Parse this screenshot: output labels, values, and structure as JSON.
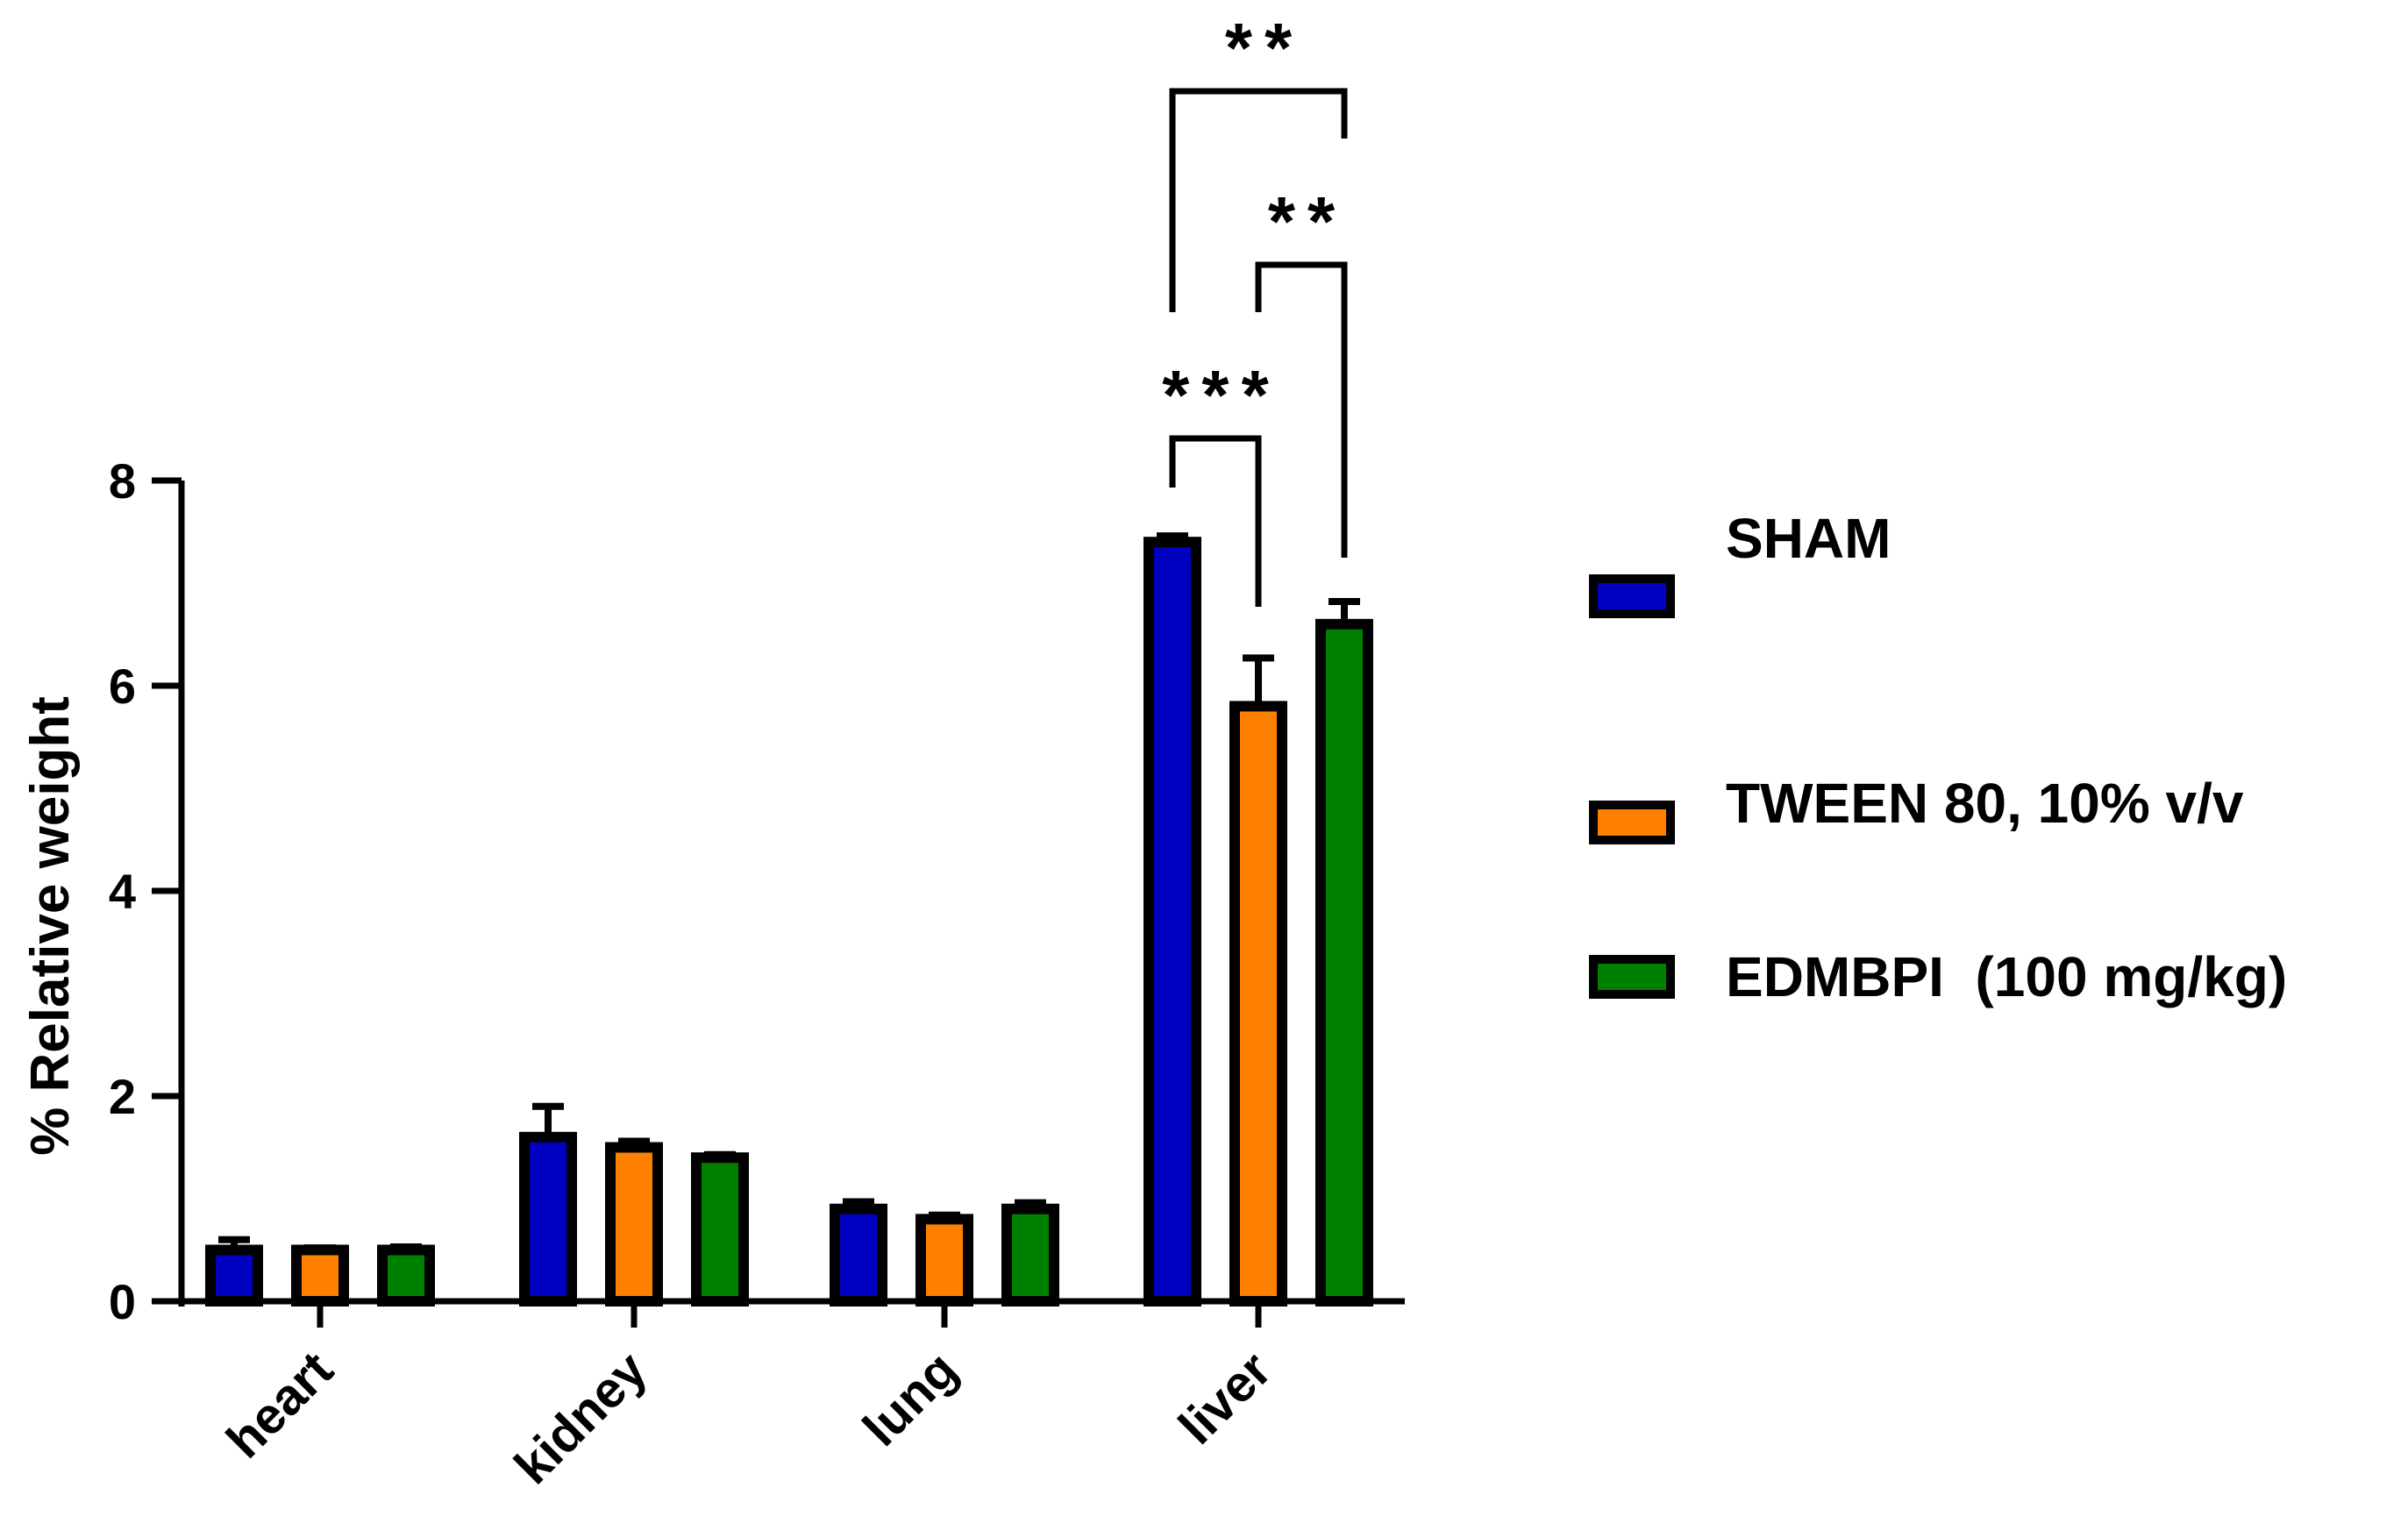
{
  "chart_data": {
    "type": "bar",
    "categories": [
      "heart",
      "kidney",
      "lung",
      "liver"
    ],
    "ylabel": "% Relative weight",
    "ylim": [
      0,
      8
    ],
    "yticks": [
      0,
      2,
      4,
      6,
      8
    ],
    "grid": false,
    "legend_position": "right",
    "series": [
      {
        "name": "SHAM",
        "color": "#0000c0",
        "values": [
          0.5,
          1.6,
          0.9,
          7.4
        ],
        "errors": [
          0.1,
          0.3,
          0.07,
          0.06
        ]
      },
      {
        "name": "TWEEN 80, 10% v/v",
        "color": "#ff8000",
        "values": [
          0.5,
          1.5,
          0.8,
          5.8
        ],
        "errors": [
          0.02,
          0.06,
          0.04,
          0.47
        ]
      },
      {
        "name": "EDMBPI  (100 mg/kg)",
        "color": "#008000",
        "values": [
          0.5,
          1.4,
          0.9,
          6.6
        ],
        "errors": [
          0.03,
          0.03,
          0.06,
          0.22
        ]
      }
    ],
    "annotations": [
      {
        "category": "liver",
        "from_series": 0,
        "to_series": 1,
        "label": "***",
        "level": 1
      },
      {
        "category": "liver",
        "from_series": 1,
        "to_series": 2,
        "label": "**",
        "level": 2
      },
      {
        "category": "liver",
        "from_series": 0,
        "to_series": 2,
        "label": "**",
        "level": 3
      }
    ]
  }
}
